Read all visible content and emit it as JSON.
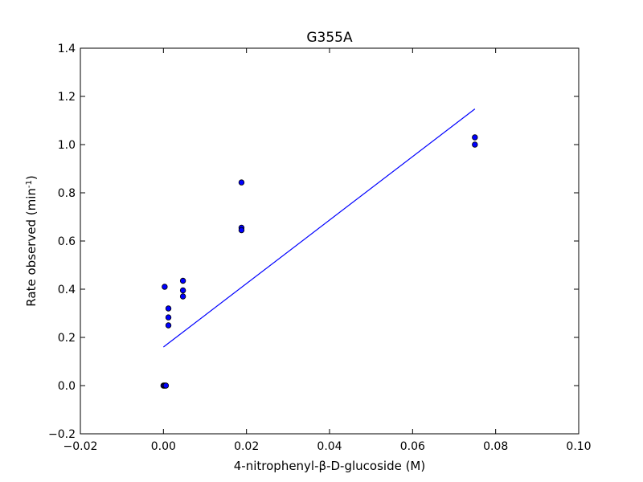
{
  "chart_data": {
    "type": "scatter",
    "title": "G355A",
    "xlabel": "4-nitrophenyl-β-D-glucoside (M)",
    "ylabel": "Rate observed (min",
    "ylabel_sup": "-1",
    "ylabel_end": ")",
    "xlim": [
      -0.02,
      0.1
    ],
    "ylim": [
      -0.2,
      1.4
    ],
    "xticks": [
      -0.02,
      0.0,
      0.02,
      0.04,
      0.06,
      0.08,
      0.1
    ],
    "xtick_labels": [
      "−0.02",
      "0.00",
      "0.02",
      "0.04",
      "0.06",
      "0.08",
      "0.10"
    ],
    "yticks": [
      -0.2,
      0.0,
      0.2,
      0.4,
      0.6,
      0.8,
      1.0,
      1.2,
      1.4
    ],
    "ytick_labels": [
      "−0.2",
      "0.0",
      "0.2",
      "0.4",
      "0.6",
      "0.8",
      "1.0",
      "1.2",
      "1.4"
    ],
    "grid": false,
    "series": [
      {
        "kind": "scatter",
        "color": "#0000ff",
        "points": [
          [
            0.0,
            0.0
          ],
          [
            0.0002,
            0.0
          ],
          [
            0.0004,
            0.0
          ],
          [
            0.0006,
            0.0
          ],
          [
            0.0003,
            0.41
          ],
          [
            0.0012,
            0.32
          ],
          [
            0.0012,
            0.283
          ],
          [
            0.0012,
            0.25
          ],
          [
            0.0047,
            0.435
          ],
          [
            0.0047,
            0.395
          ],
          [
            0.0047,
            0.37
          ],
          [
            0.0188,
            0.843
          ],
          [
            0.0188,
            0.655
          ],
          [
            0.0188,
            0.645
          ],
          [
            0.075,
            1.03
          ],
          [
            0.075,
            1.0
          ]
        ]
      },
      {
        "kind": "line",
        "color": "#0000ff",
        "points": [
          [
            0.0,
            0.16
          ],
          [
            0.075,
            1.148
          ]
        ]
      }
    ]
  }
}
